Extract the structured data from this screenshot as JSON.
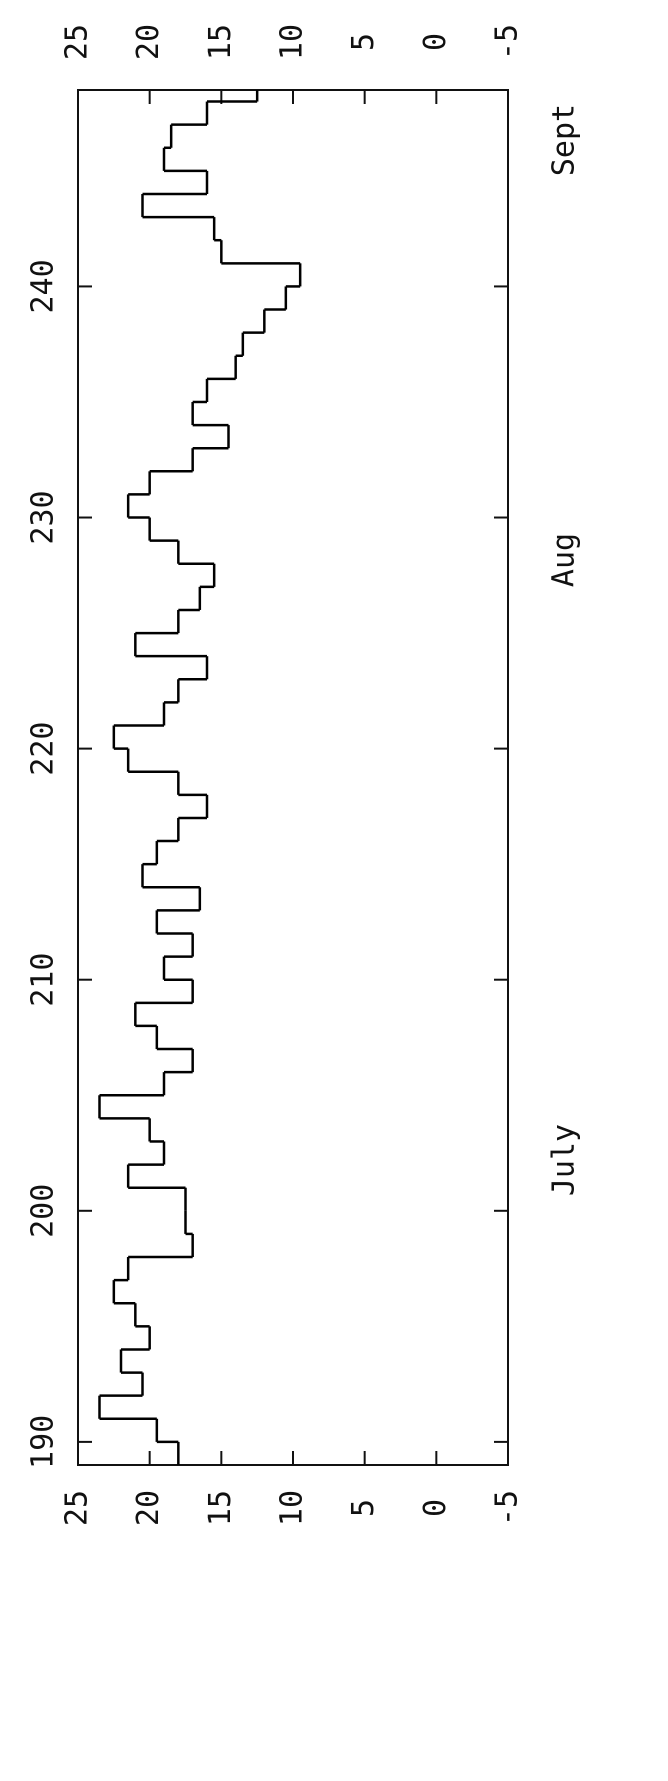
{
  "chart_data": {
    "type": "step",
    "x": [
      189,
      190,
      191,
      192,
      193,
      194,
      195,
      196,
      197,
      198,
      199,
      200,
      201,
      202,
      203,
      204,
      205,
      206,
      207,
      208,
      209,
      210,
      211,
      212,
      213,
      214,
      215,
      216,
      217,
      218,
      219,
      220,
      221,
      222,
      223,
      224,
      225,
      226,
      227,
      228,
      229,
      230,
      231,
      232,
      233,
      234,
      235,
      236,
      237,
      238,
      239,
      240,
      241,
      242,
      243,
      244,
      245,
      246,
      247,
      248
    ],
    "values": [
      18,
      19.5,
      23.5,
      20.5,
      22,
      20,
      21,
      22.5,
      21.5,
      17,
      17.5,
      17.5,
      21.5,
      19,
      20,
      23.5,
      19,
      17,
      19.5,
      21,
      17,
      19,
      17,
      19.5,
      16.5,
      20.5,
      19.5,
      18,
      16,
      18,
      21.5,
      22.5,
      19,
      18,
      16,
      21,
      18,
      16.5,
      15.5,
      18,
      20,
      21.5,
      20,
      17,
      14.5,
      17,
      16,
      14,
      13.5,
      12,
      10.5,
      9.5,
      15,
      15.5,
      20.5,
      16,
      19,
      18.5,
      16,
      12.5
    ],
    "color": "#000000",
    "xlim": [
      189,
      248.5
    ],
    "xticks": [
      190,
      200,
      210,
      220,
      230,
      240
    ],
    "ylim": [
      -5,
      25
    ],
    "yticks": [
      25,
      20,
      15,
      10,
      5,
      0,
      -5
    ],
    "month_labels": [
      "July",
      "Aug",
      "Sept"
    ]
  }
}
